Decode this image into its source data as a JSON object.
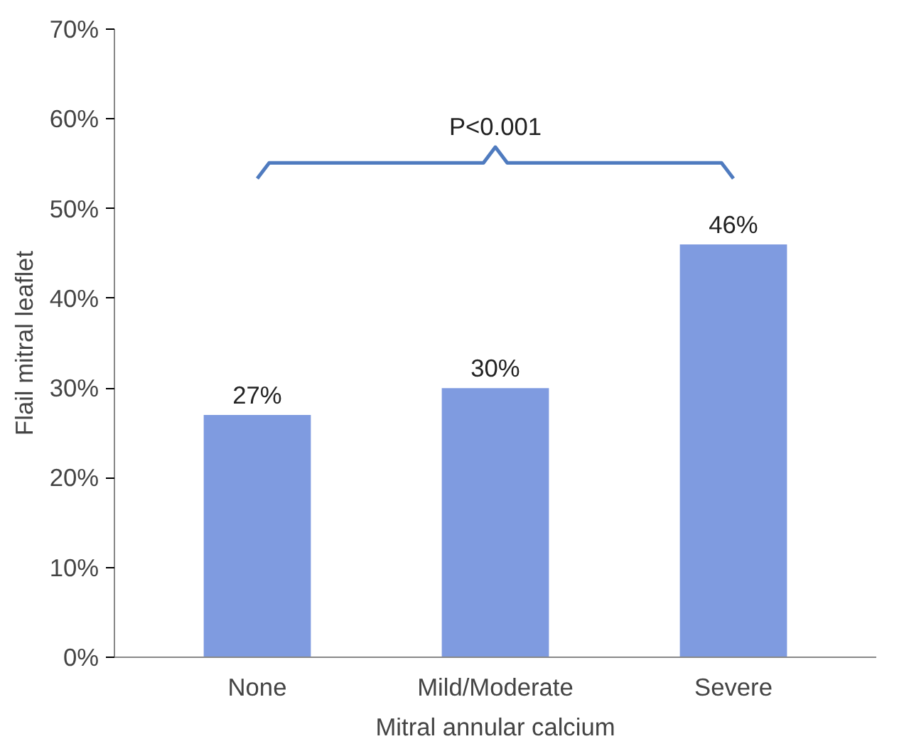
{
  "chart_data": {
    "type": "bar",
    "xlabel": "Mitral annular calcium",
    "ylabel": "Flail mitral leaflet",
    "categories": [
      "None",
      "Mild/Moderate",
      "Severe"
    ],
    "values": [
      27,
      30,
      46
    ],
    "value_labels": [
      "27%",
      "30%",
      "46%"
    ],
    "color": "#7f9be0",
    "ylim": [
      0,
      70
    ],
    "yticks": [
      {
        "value": 0,
        "label": "0%"
      },
      {
        "value": 10,
        "label": "10%"
      },
      {
        "value": 20,
        "label": "20%"
      },
      {
        "value": 30,
        "label": "30%"
      },
      {
        "value": 40,
        "label": "40%"
      },
      {
        "value": 50,
        "label": "50%"
      },
      {
        "value": 60,
        "label": "60%"
      },
      {
        "value": 70,
        "label": "70%"
      }
    ],
    "annotations": [
      "P<0.001"
    ],
    "grid": false
  }
}
